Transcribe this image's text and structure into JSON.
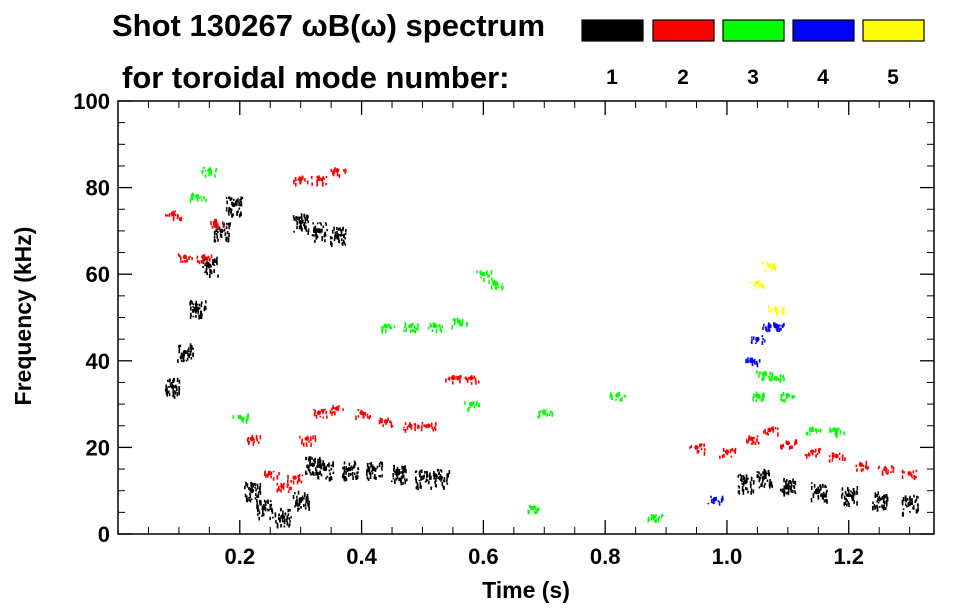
{
  "title_line1": "Shot 130267 ωB(ω) spectrum",
  "title_line2": "for toroidal mode number:",
  "legend": [
    {
      "n": "1",
      "color": "#000000"
    },
    {
      "n": "2",
      "color": "#ff0000"
    },
    {
      "n": "3",
      "color": "#00ff00"
    },
    {
      "n": "4",
      "color": "#0000ff"
    },
    {
      "n": "5",
      "color": "#ffff00"
    }
  ],
  "chart_data": {
    "type": "scatter",
    "title": "Shot 130267 ωB(ω) spectrum for toroidal mode number:",
    "xlabel": "Time (s)",
    "ylabel": "Frequency (kHz)",
    "xlim": [
      0.0,
      1.34
    ],
    "ylim": [
      0,
      100
    ],
    "xticks": [
      0.2,
      0.4,
      0.6,
      0.8,
      1.0,
      1.2
    ],
    "xtick_labels": [
      "0.2",
      "0.4",
      "0.6",
      "0.8",
      "1.0",
      "1.2"
    ],
    "yticks": [
      0,
      20,
      40,
      60,
      80,
      100
    ],
    "ytick_labels": [
      "0",
      "20",
      "40",
      "60",
      "80",
      "100"
    ],
    "series": [
      {
        "name": "n=1",
        "color": "#000000",
        "points": [
          [
            0.09,
            34
          ],
          [
            0.11,
            42
          ],
          [
            0.13,
            52
          ],
          [
            0.15,
            62
          ],
          [
            0.17,
            70
          ],
          [
            0.19,
            76
          ],
          [
            0.22,
            10
          ],
          [
            0.24,
            6
          ],
          [
            0.27,
            4
          ],
          [
            0.3,
            8
          ],
          [
            0.32,
            16
          ],
          [
            0.34,
            15
          ],
          [
            0.38,
            15
          ],
          [
            0.42,
            15
          ],
          [
            0.46,
            14
          ],
          [
            0.5,
            13
          ],
          [
            0.53,
            13
          ],
          [
            0.3,
            72
          ],
          [
            0.33,
            70
          ],
          [
            0.36,
            69
          ],
          [
            1.03,
            12
          ],
          [
            1.06,
            13
          ],
          [
            1.1,
            11
          ],
          [
            1.15,
            10
          ],
          [
            1.2,
            9
          ],
          [
            1.25,
            8
          ],
          [
            1.3,
            7
          ]
        ]
      },
      {
        "name": "n=2",
        "color": "#ff0000",
        "points": [
          [
            0.09,
            74
          ],
          [
            0.11,
            64
          ],
          [
            0.14,
            64
          ],
          [
            0.16,
            72
          ],
          [
            0.22,
            22
          ],
          [
            0.25,
            14
          ],
          [
            0.27,
            11
          ],
          [
            0.29,
            13
          ],
          [
            0.31,
            22
          ],
          [
            0.33,
            28
          ],
          [
            0.36,
            29
          ],
          [
            0.4,
            28
          ],
          [
            0.44,
            26
          ],
          [
            0.48,
            25
          ],
          [
            0.51,
            25
          ],
          [
            0.3,
            82
          ],
          [
            0.33,
            82
          ],
          [
            0.36,
            84
          ],
          [
            0.55,
            36
          ],
          [
            0.58,
            36
          ],
          [
            0.95,
            20
          ],
          [
            1.0,
            19
          ],
          [
            1.04,
            22
          ],
          [
            1.07,
            24
          ],
          [
            1.1,
            21
          ],
          [
            1.14,
            19
          ],
          [
            1.18,
            18
          ],
          [
            1.22,
            16
          ],
          [
            1.26,
            15
          ],
          [
            1.3,
            14
          ]
        ]
      },
      {
        "name": "n=3",
        "color": "#00ff00",
        "points": [
          [
            0.13,
            78
          ],
          [
            0.15,
            84
          ],
          [
            0.2,
            27
          ],
          [
            0.44,
            48
          ],
          [
            0.48,
            48
          ],
          [
            0.52,
            48
          ],
          [
            0.56,
            49
          ],
          [
            0.6,
            60
          ],
          [
            0.62,
            58
          ],
          [
            0.58,
            30
          ],
          [
            0.7,
            28
          ],
          [
            0.82,
            32
          ],
          [
            0.68,
            6
          ],
          [
            0.88,
            4
          ],
          [
            1.06,
            37
          ],
          [
            1.08,
            36
          ],
          [
            1.05,
            32
          ],
          [
            1.1,
            32
          ],
          [
            1.14,
            24
          ],
          [
            1.18,
            24
          ]
        ]
      },
      {
        "name": "n=4",
        "color": "#0000ff",
        "points": [
          [
            1.05,
            45
          ],
          [
            1.07,
            48
          ],
          [
            1.08,
            48
          ],
          [
            1.04,
            40
          ],
          [
            0.98,
            8
          ]
        ]
      },
      {
        "name": "n=5",
        "color": "#ffff00",
        "points": [
          [
            1.07,
            62
          ],
          [
            1.05,
            58
          ],
          [
            1.08,
            52
          ]
        ]
      }
    ]
  }
}
